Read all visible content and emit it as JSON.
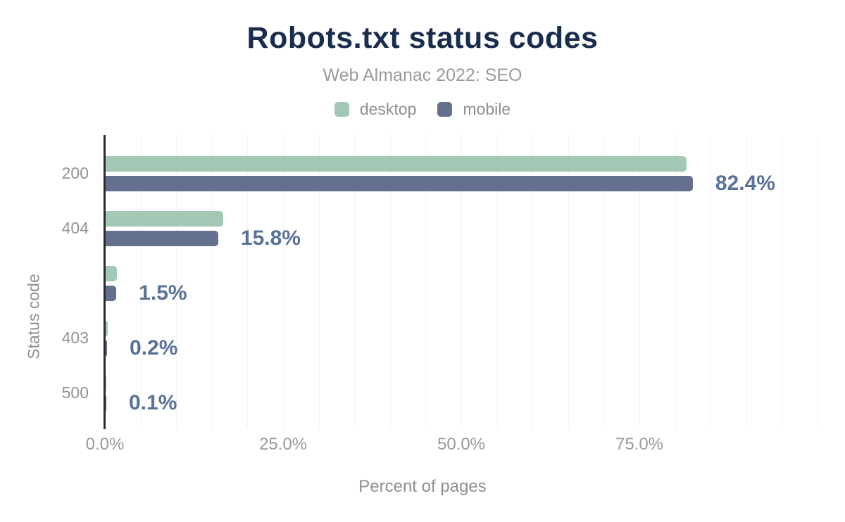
{
  "header": {
    "title": "Robots.txt status codes",
    "subtitle": "Web Almanac 2022: SEO"
  },
  "chart_data": {
    "type": "bar",
    "orientation": "horizontal",
    "title": "Robots.txt status codes",
    "subtitle": "Web Almanac 2022: SEO",
    "categories": [
      "200",
      "404",
      "",
      "403",
      "500"
    ],
    "series": [
      {
        "name": "desktop",
        "color": "#a3c9b6",
        "values": [
          81.5,
          16.5,
          1.6,
          0.3,
          0.1
        ]
      },
      {
        "name": "mobile",
        "color": "#64718e",
        "values": [
          82.4,
          15.8,
          1.5,
          0.2,
          0.1
        ]
      }
    ],
    "value_labels": [
      "82.4%",
      "15.8%",
      "1.5%",
      "0.2%",
      "0.1%"
    ],
    "xlabel": "Percent of pages",
    "ylabel": "Status code",
    "xlim": [
      0,
      100
    ],
    "x_ticks": [
      {
        "value": 0,
        "label": "0.0%"
      },
      {
        "value": 25,
        "label": "25.0%"
      },
      {
        "value": 50,
        "label": "50.0%"
      },
      {
        "value": 75,
        "label": "75.0%"
      }
    ],
    "grid": {
      "show": true,
      "interval_percent": 5
    },
    "legend_position": "top-center"
  },
  "colors": {
    "title": "#1b2d4e",
    "subtitle_gray": "#9a9a9a",
    "desktop_bar": "#a3c9b6",
    "mobile_bar": "#64718e",
    "value_label": "#5a7199",
    "gridline": "#f3f3f6",
    "axis_line": "#2b2b2b",
    "background": "#ffffff"
  }
}
